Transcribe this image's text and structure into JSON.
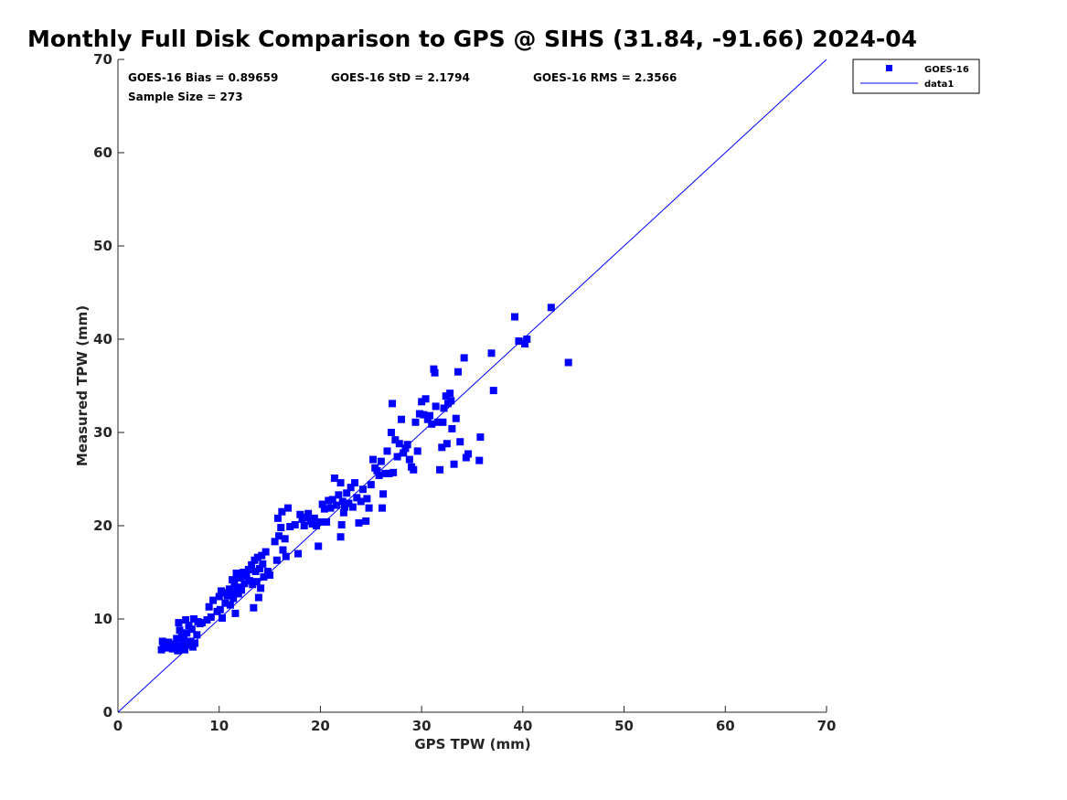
{
  "chart_data": {
    "type": "scatter",
    "title": "Monthly Full Disk Comparison to GPS @ SIHS (31.84, -91.66) 2024-04",
    "xlabel": "GPS TPW (mm)",
    "ylabel": "Measured TPW (mm)",
    "xlim": [
      0,
      70
    ],
    "ylim": [
      0,
      70
    ],
    "xticks": [
      0,
      10,
      20,
      30,
      40,
      50,
      60,
      70
    ],
    "yticks": [
      0,
      10,
      20,
      30,
      40,
      50,
      60,
      70
    ],
    "grid": false,
    "legend_position": "top-right, outside plot",
    "stats": {
      "bias": "GOES-16 Bias = 0.89659",
      "std": "GOES-16 StD = 2.1794",
      "rms": "GOES-16 RMS = 2.3566",
      "sample": "Sample Size = 273"
    },
    "series": [
      {
        "name": "GOES-16",
        "kind": "scatter",
        "marker": "square",
        "color": "#0000ff",
        "points": [
          [
            4.3,
            6.7
          ],
          [
            4.5,
            7.2
          ],
          [
            4.7,
            6.9
          ],
          [
            5.0,
            7.5
          ],
          [
            5.2,
            7.0
          ],
          [
            5.4,
            6.8
          ],
          [
            4.8,
            7.4
          ],
          [
            5.6,
            7.3
          ],
          [
            4.4,
            7.6
          ],
          [
            5.9,
            6.6
          ],
          [
            6.0,
            9.6
          ],
          [
            6.1,
            8.8
          ],
          [
            6.2,
            7.1
          ],
          [
            6.3,
            8.2
          ],
          [
            6.4,
            6.9
          ],
          [
            6.5,
            7.8
          ],
          [
            6.7,
            9.9
          ],
          [
            6.8,
            8.5
          ],
          [
            6.9,
            7.2
          ],
          [
            7.0,
            9.3
          ],
          [
            7.2,
            7.6
          ],
          [
            7.3,
            8.9
          ],
          [
            7.5,
            10.0
          ],
          [
            7.6,
            7.4
          ],
          [
            7.8,
            8.3
          ],
          [
            7.9,
            9.7
          ],
          [
            8.1,
            9.5
          ],
          [
            6.6,
            6.7
          ],
          [
            7.4,
            7.0
          ],
          [
            5.8,
            7.9
          ],
          [
            8.3,
            9.6
          ],
          [
            8.8,
            9.9
          ],
          [
            9.0,
            11.3
          ],
          [
            9.2,
            10.2
          ],
          [
            9.4,
            12.0
          ],
          [
            9.8,
            10.8
          ],
          [
            10.0,
            12.4
          ],
          [
            10.1,
            11.0
          ],
          [
            10.2,
            13.0
          ],
          [
            10.3,
            10.1
          ],
          [
            10.5,
            12.8
          ],
          [
            10.6,
            11.7
          ],
          [
            10.8,
            12.5
          ],
          [
            11.0,
            13.2
          ],
          [
            11.1,
            11.5
          ],
          [
            11.2,
            12.9
          ],
          [
            11.3,
            14.2
          ],
          [
            11.4,
            12.2
          ],
          [
            11.5,
            13.7
          ],
          [
            11.6,
            10.6
          ],
          [
            11.7,
            14.9
          ],
          [
            11.8,
            13.4
          ],
          [
            11.9,
            12.7
          ],
          [
            12.0,
            14.4
          ],
          [
            12.2,
            13.1
          ],
          [
            12.4,
            15.0
          ],
          [
            12.5,
            13.8
          ],
          [
            12.7,
            14.6
          ],
          [
            12.9,
            15.3
          ],
          [
            13.0,
            14.1
          ],
          [
            13.2,
            15.8
          ],
          [
            13.3,
            13.7
          ],
          [
            13.4,
            11.2
          ],
          [
            13.5,
            16.3
          ],
          [
            13.6,
            15.1
          ],
          [
            13.7,
            14.0
          ],
          [
            13.8,
            16.6
          ],
          [
            13.9,
            12.3
          ],
          [
            14.0,
            15.4
          ],
          [
            14.1,
            13.3
          ],
          [
            14.2,
            16.8
          ],
          [
            14.3,
            15.9
          ],
          [
            14.4,
            14.5
          ],
          [
            14.6,
            17.2
          ],
          [
            14.8,
            15.1
          ],
          [
            15.0,
            14.7
          ],
          [
            15.5,
            18.3
          ],
          [
            15.7,
            16.3
          ],
          [
            15.8,
            20.8
          ],
          [
            15.9,
            18.9
          ],
          [
            16.1,
            19.8
          ],
          [
            16.2,
            21.5
          ],
          [
            16.3,
            17.4
          ],
          [
            16.5,
            18.6
          ],
          [
            16.6,
            16.7
          ],
          [
            16.8,
            21.9
          ],
          [
            17.0,
            19.9
          ],
          [
            17.5,
            20.1
          ],
          [
            17.8,
            17.0
          ],
          [
            18.0,
            21.2
          ],
          [
            18.2,
            20.7
          ],
          [
            18.4,
            20.0
          ],
          [
            18.6,
            20.9
          ],
          [
            18.8,
            21.3
          ],
          [
            19.0,
            20.5
          ],
          [
            19.2,
            20.2
          ],
          [
            19.4,
            20.8
          ],
          [
            19.6,
            20.0
          ],
          [
            19.8,
            17.8
          ],
          [
            20.0,
            20.4
          ],
          [
            20.2,
            22.3
          ],
          [
            20.4,
            21.8
          ],
          [
            20.6,
            20.4
          ],
          [
            20.8,
            22.7
          ],
          [
            21.0,
            21.9
          ],
          [
            21.2,
            22.8
          ],
          [
            21.4,
            25.1
          ],
          [
            21.6,
            22.2
          ],
          [
            21.8,
            23.3
          ],
          [
            22.0,
            24.6
          ],
          [
            22.0,
            18.8
          ],
          [
            22.1,
            20.1
          ],
          [
            22.2,
            22.6
          ],
          [
            22.3,
            21.4
          ],
          [
            22.4,
            22.0
          ],
          [
            22.6,
            23.5
          ],
          [
            22.8,
            22.4
          ],
          [
            23.0,
            24.1
          ],
          [
            23.2,
            22.0
          ],
          [
            23.4,
            24.6
          ],
          [
            23.6,
            23.0
          ],
          [
            23.8,
            20.3
          ],
          [
            24.0,
            22.6
          ],
          [
            24.2,
            23.9
          ],
          [
            24.5,
            20.5
          ],
          [
            24.6,
            22.9
          ],
          [
            24.8,
            21.9
          ],
          [
            25.0,
            24.4
          ],
          [
            25.2,
            27.1
          ],
          [
            25.4,
            26.2
          ],
          [
            25.6,
            25.9
          ],
          [
            25.8,
            25.4
          ],
          [
            26.0,
            26.9
          ],
          [
            26.1,
            21.9
          ],
          [
            26.2,
            23.4
          ],
          [
            26.4,
            25.6
          ],
          [
            26.6,
            28.0
          ],
          [
            26.8,
            25.6
          ],
          [
            27.0,
            30.0
          ],
          [
            27.1,
            33.1
          ],
          [
            27.2,
            25.7
          ],
          [
            27.4,
            29.2
          ],
          [
            27.6,
            27.4
          ],
          [
            27.8,
            28.8
          ],
          [
            28.0,
            31.4
          ],
          [
            28.2,
            27.8
          ],
          [
            28.4,
            28.3
          ],
          [
            28.6,
            28.7
          ],
          [
            28.8,
            27.1
          ],
          [
            29.0,
            26.3
          ],
          [
            29.2,
            26.0
          ],
          [
            29.4,
            31.1
          ],
          [
            29.6,
            28.0
          ],
          [
            29.8,
            32.0
          ],
          [
            30.0,
            33.3
          ],
          [
            30.2,
            31.9
          ],
          [
            30.4,
            33.6
          ],
          [
            30.6,
            31.4
          ],
          [
            30.8,
            31.8
          ],
          [
            31.0,
            30.9
          ],
          [
            31.2,
            36.8
          ],
          [
            31.3,
            36.4
          ],
          [
            31.4,
            32.8
          ],
          [
            31.6,
            31.1
          ],
          [
            31.8,
            26.0
          ],
          [
            32.0,
            28.4
          ],
          [
            32.1,
            31.1
          ],
          [
            32.2,
            32.6
          ],
          [
            32.4,
            33.9
          ],
          [
            32.5,
            28.8
          ],
          [
            32.6,
            33.1
          ],
          [
            32.8,
            34.2
          ],
          [
            32.9,
            33.4
          ],
          [
            33.0,
            30.4
          ],
          [
            33.2,
            26.6
          ],
          [
            33.4,
            31.5
          ],
          [
            33.6,
            36.5
          ],
          [
            33.8,
            29.0
          ],
          [
            34.2,
            38.0
          ],
          [
            34.4,
            27.3
          ],
          [
            34.6,
            27.7
          ],
          [
            35.7,
            27.0
          ],
          [
            35.8,
            29.5
          ],
          [
            36.9,
            38.5
          ],
          [
            37.1,
            34.5
          ],
          [
            39.2,
            42.4
          ],
          [
            39.6,
            39.8
          ],
          [
            40.2,
            39.5
          ],
          [
            40.4,
            40.0
          ],
          [
            42.8,
            43.4
          ],
          [
            44.5,
            37.5
          ]
        ]
      },
      {
        "name": "data1",
        "kind": "line",
        "color": "#0000ff",
        "points": [
          [
            0,
            0
          ],
          [
            70,
            70
          ]
        ]
      }
    ]
  }
}
